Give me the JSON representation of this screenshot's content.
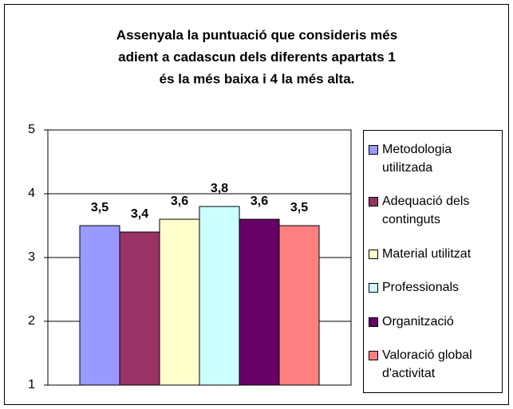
{
  "chart_data": {
    "type": "bar",
    "title": [
      "Assenyala la puntuació que consideris més",
      "adient a cadascun dels diferents apartats 1",
      "és la més baixa i 4 la més alta."
    ],
    "categories": [
      null
    ],
    "series": [
      {
        "name": "Metodologia utilitzada",
        "color": "#9999ff",
        "values": [
          3.5
        ],
        "value_labels": [
          "3,5"
        ]
      },
      {
        "name": "Adequació dels continguts",
        "color": "#993366",
        "values": [
          3.4
        ],
        "value_labels": [
          "3,4"
        ]
      },
      {
        "name": "Material utilitzat",
        "color": "#ffffcc",
        "values": [
          3.6
        ],
        "value_labels": [
          "3,6"
        ]
      },
      {
        "name": "Professionals",
        "color": "#ccffff",
        "values": [
          3.8
        ],
        "value_labels": [
          "3,8"
        ]
      },
      {
        "name": "Organització",
        "color": "#660066",
        "values": [
          3.6
        ],
        "value_labels": [
          "3,6"
        ]
      },
      {
        "name": "Valoració global d'activitat",
        "color": "#ff8080",
        "values": [
          3.5
        ],
        "value_labels": [
          "3,5"
        ]
      }
    ],
    "ylim": [
      1,
      5
    ],
    "yticks": [
      1,
      2,
      3,
      4,
      5
    ],
    "grid": true,
    "legend": "right"
  }
}
